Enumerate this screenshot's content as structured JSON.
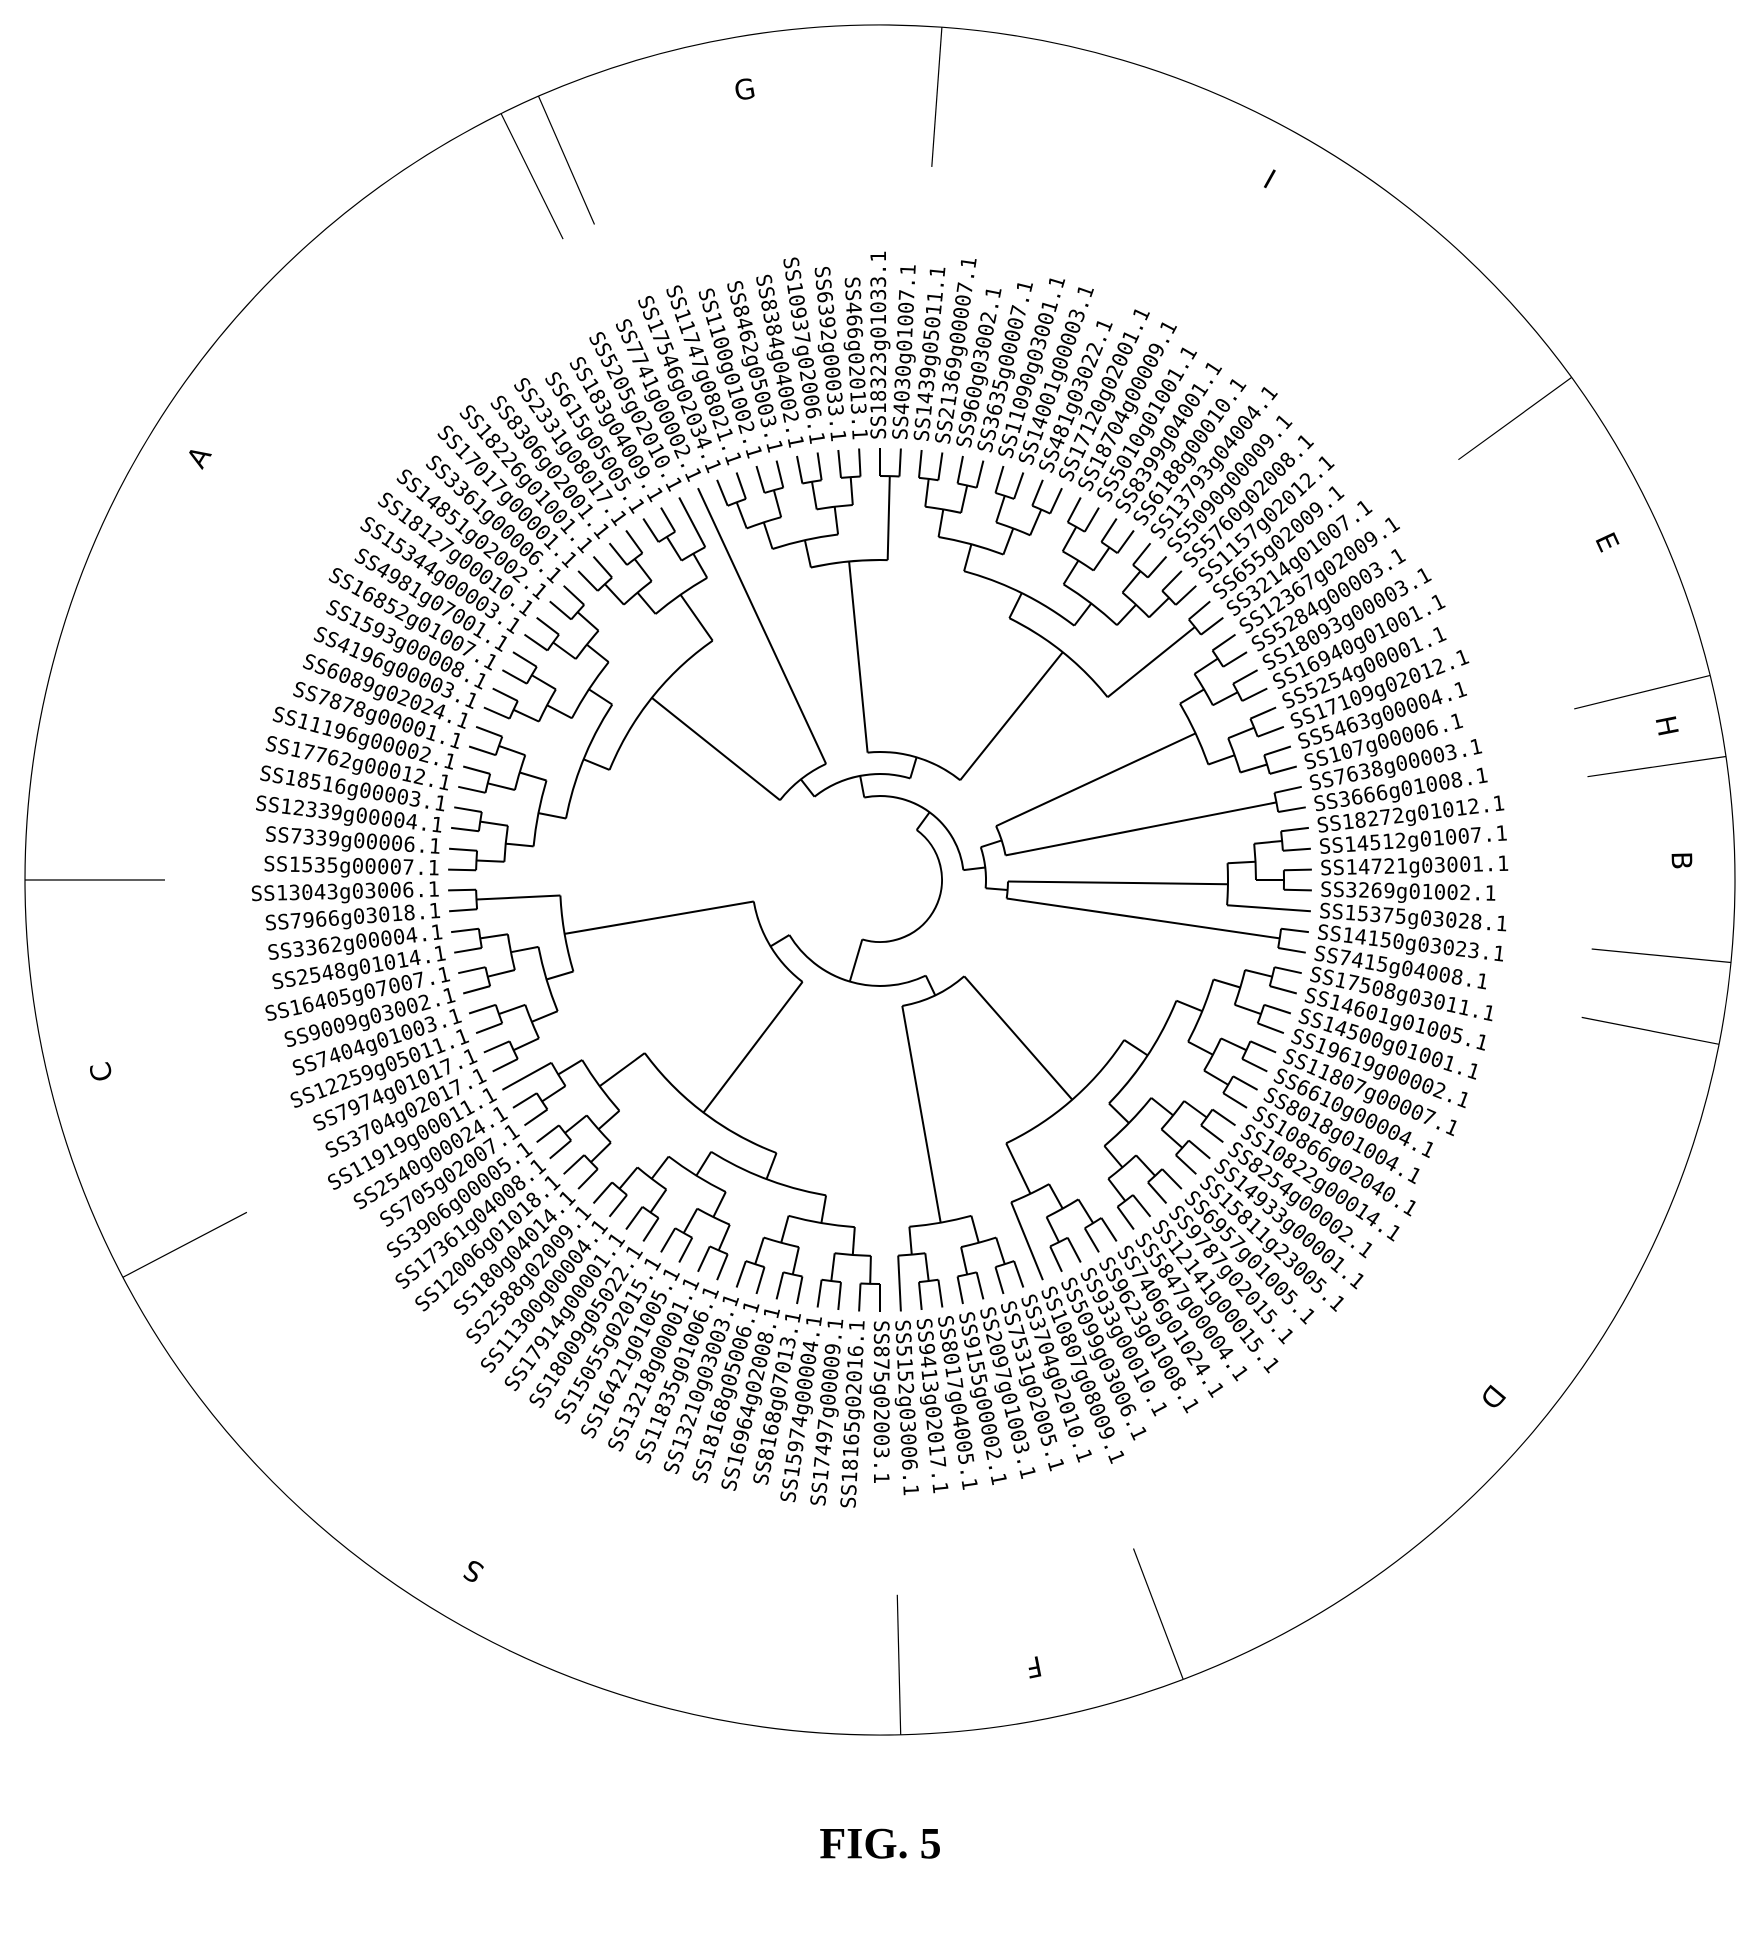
{
  "figure": {
    "caption": "FIG. 5",
    "line_color": "#000000",
    "background": "#ffffff"
  },
  "clades": [
    {
      "label": "A",
      "leaves": [
        "SS1535g00007.1",
        "SS7339g00006.1",
        "SS12339g00004.1",
        "SS18516g00003.1",
        "SS17762g00012.1",
        "SS11196g00002.1",
        "SS7878g00001.1",
        "SS6089g02024.1",
        "SS4196g00003.1",
        "SS1593g00008.1",
        "SS16852g01007.1",
        "SS4981g07001.1",
        "SS15344g00003.1",
        "SS18127g00010.1",
        "SS14851g02002.1",
        "SS3361g00006.1",
        "SS17017g00001.1",
        "SS18226g01001.1",
        "SS8306g02001.1",
        "SS2331g08017.1",
        "SS615g05005.1",
        "SS183g04009.1",
        "SS5205g02010.1"
      ]
    },
    {
      "label": "",
      "leaves": [
        "SS7741g00002.1"
      ]
    },
    {
      "label": "G",
      "leaves": [
        "SS17546g02034.1",
        "SS11747g08021.1",
        "SS1100g01002.1",
        "SS8462g05003.1",
        "SS8384g04002.1",
        "SS10937g02006.1",
        "SS6392g00033.1",
        "SS466g02013.1",
        "SS18323g01033.1",
        "SS4030g01007.1"
      ]
    },
    {
      "label": "I",
      "leaves": [
        "SS1439g05011.1",
        "SS21369g00007.1",
        "SS960g03002.1",
        "SS3635g00007.1",
        "SS11090g03001.1",
        "SS14001g00003.1",
        "SS481g03022.1",
        "SS17120g02001.1",
        "SS18704g00009.1",
        "SS5010g01001.1",
        "SS8399g04001.1",
        "SS6188g00010.1",
        "SS13793g04004.1",
        "SS5090g00009.1",
        "SS5760g02008.1",
        "SS1157g02012.1",
        "SS655g02009.1",
        "SS3214g01007.1"
      ]
    },
    {
      "label": "E",
      "leaves": [
        "SS12367g02009.1",
        "SS5284g00003.1",
        "SS18093g00003.1",
        "SS16940g01001.1",
        "SS5254g00001.1",
        "SS17109g02012.1",
        "SS5463g00004.1",
        "SS107g00006.1"
      ]
    },
    {
      "label": "H",
      "leaves": [
        "SS7638g00003.1",
        "SS3666g01008.1"
      ]
    },
    {
      "label": "B",
      "leaves": [
        "SS18272g01012.1",
        "SS14512g01007.1",
        "SS14721g03001.1",
        "SS3269g01002.1",
        "SS15375g03028.1"
      ]
    },
    {
      "label": "",
      "leaves": [
        "SS14150g03023.1",
        "SS7415g04008.1"
      ]
    },
    {
      "label": "D",
      "leaves": [
        "SS17508g03011.1",
        "SS14601g01005.1",
        "SS14500g01001.1",
        "SS19619g00002.1",
        "SS11807g00007.1",
        "SS6610g00004.1",
        "SS8018g01004.1",
        "SS10866g02040.1",
        "SS10822g00014.1",
        "SS8254g00002.1",
        "SS14933g00001.1",
        "SS15811g23005.1",
        "SS6957g01005.1",
        "SS9787g02015.1",
        "SS12141g00015.1",
        "SS5847g00004.1",
        "SS7406g01024.1",
        "SS9623g01008.1",
        "SS933g00010.1",
        "SS5099g03006.1",
        "SS10807g08009.1"
      ]
    },
    {
      "label": "F",
      "leaves": [
        "SS3704g02010.1",
        "SS7531g02005.1",
        "SS2097g01003.1",
        "SS9155g00002.1",
        "SS8017g04005.1",
        "SS9413g02017.1",
        "SS5152g03006.1"
      ]
    },
    {
      "label": "S",
      "leaves": [
        "SS875g02003.1",
        "SS18165g02016.1",
        "SS17497g00009.1",
        "SS15974g00004.1",
        "SS8168g07013.1",
        "SS16964g02008.1",
        "SS18168g05006.1",
        "SS13210g03003.1",
        "SS11835g01006.1",
        "SS13218g00001.1",
        "SS16421g01005.1",
        "SS15055g02015.1",
        "SS18009g05022.1",
        "SS17914g00001.1",
        "SS11300g00004.1",
        "SS2588g02009.1",
        "SS180g04014.1",
        "SS12006g01018.1",
        "SS17361g04008.1",
        "SS3906g00005.1",
        "SS705g02007.1",
        "SS2540g00024.1",
        "SS11919g00011.1"
      ]
    },
    {
      "label": "C",
      "leaves": [
        "SS3704g02017.1",
        "SS7974g01017.1",
        "SS12259g05011.1",
        "SS7404g01003.1",
        "SS9009g03002.1",
        "SS16405g07007.1",
        "SS2548g01014.1",
        "SS3362g00004.1",
        "SS7966g03018.1",
        "SS13043g03006.1"
      ]
    }
  ]
}
